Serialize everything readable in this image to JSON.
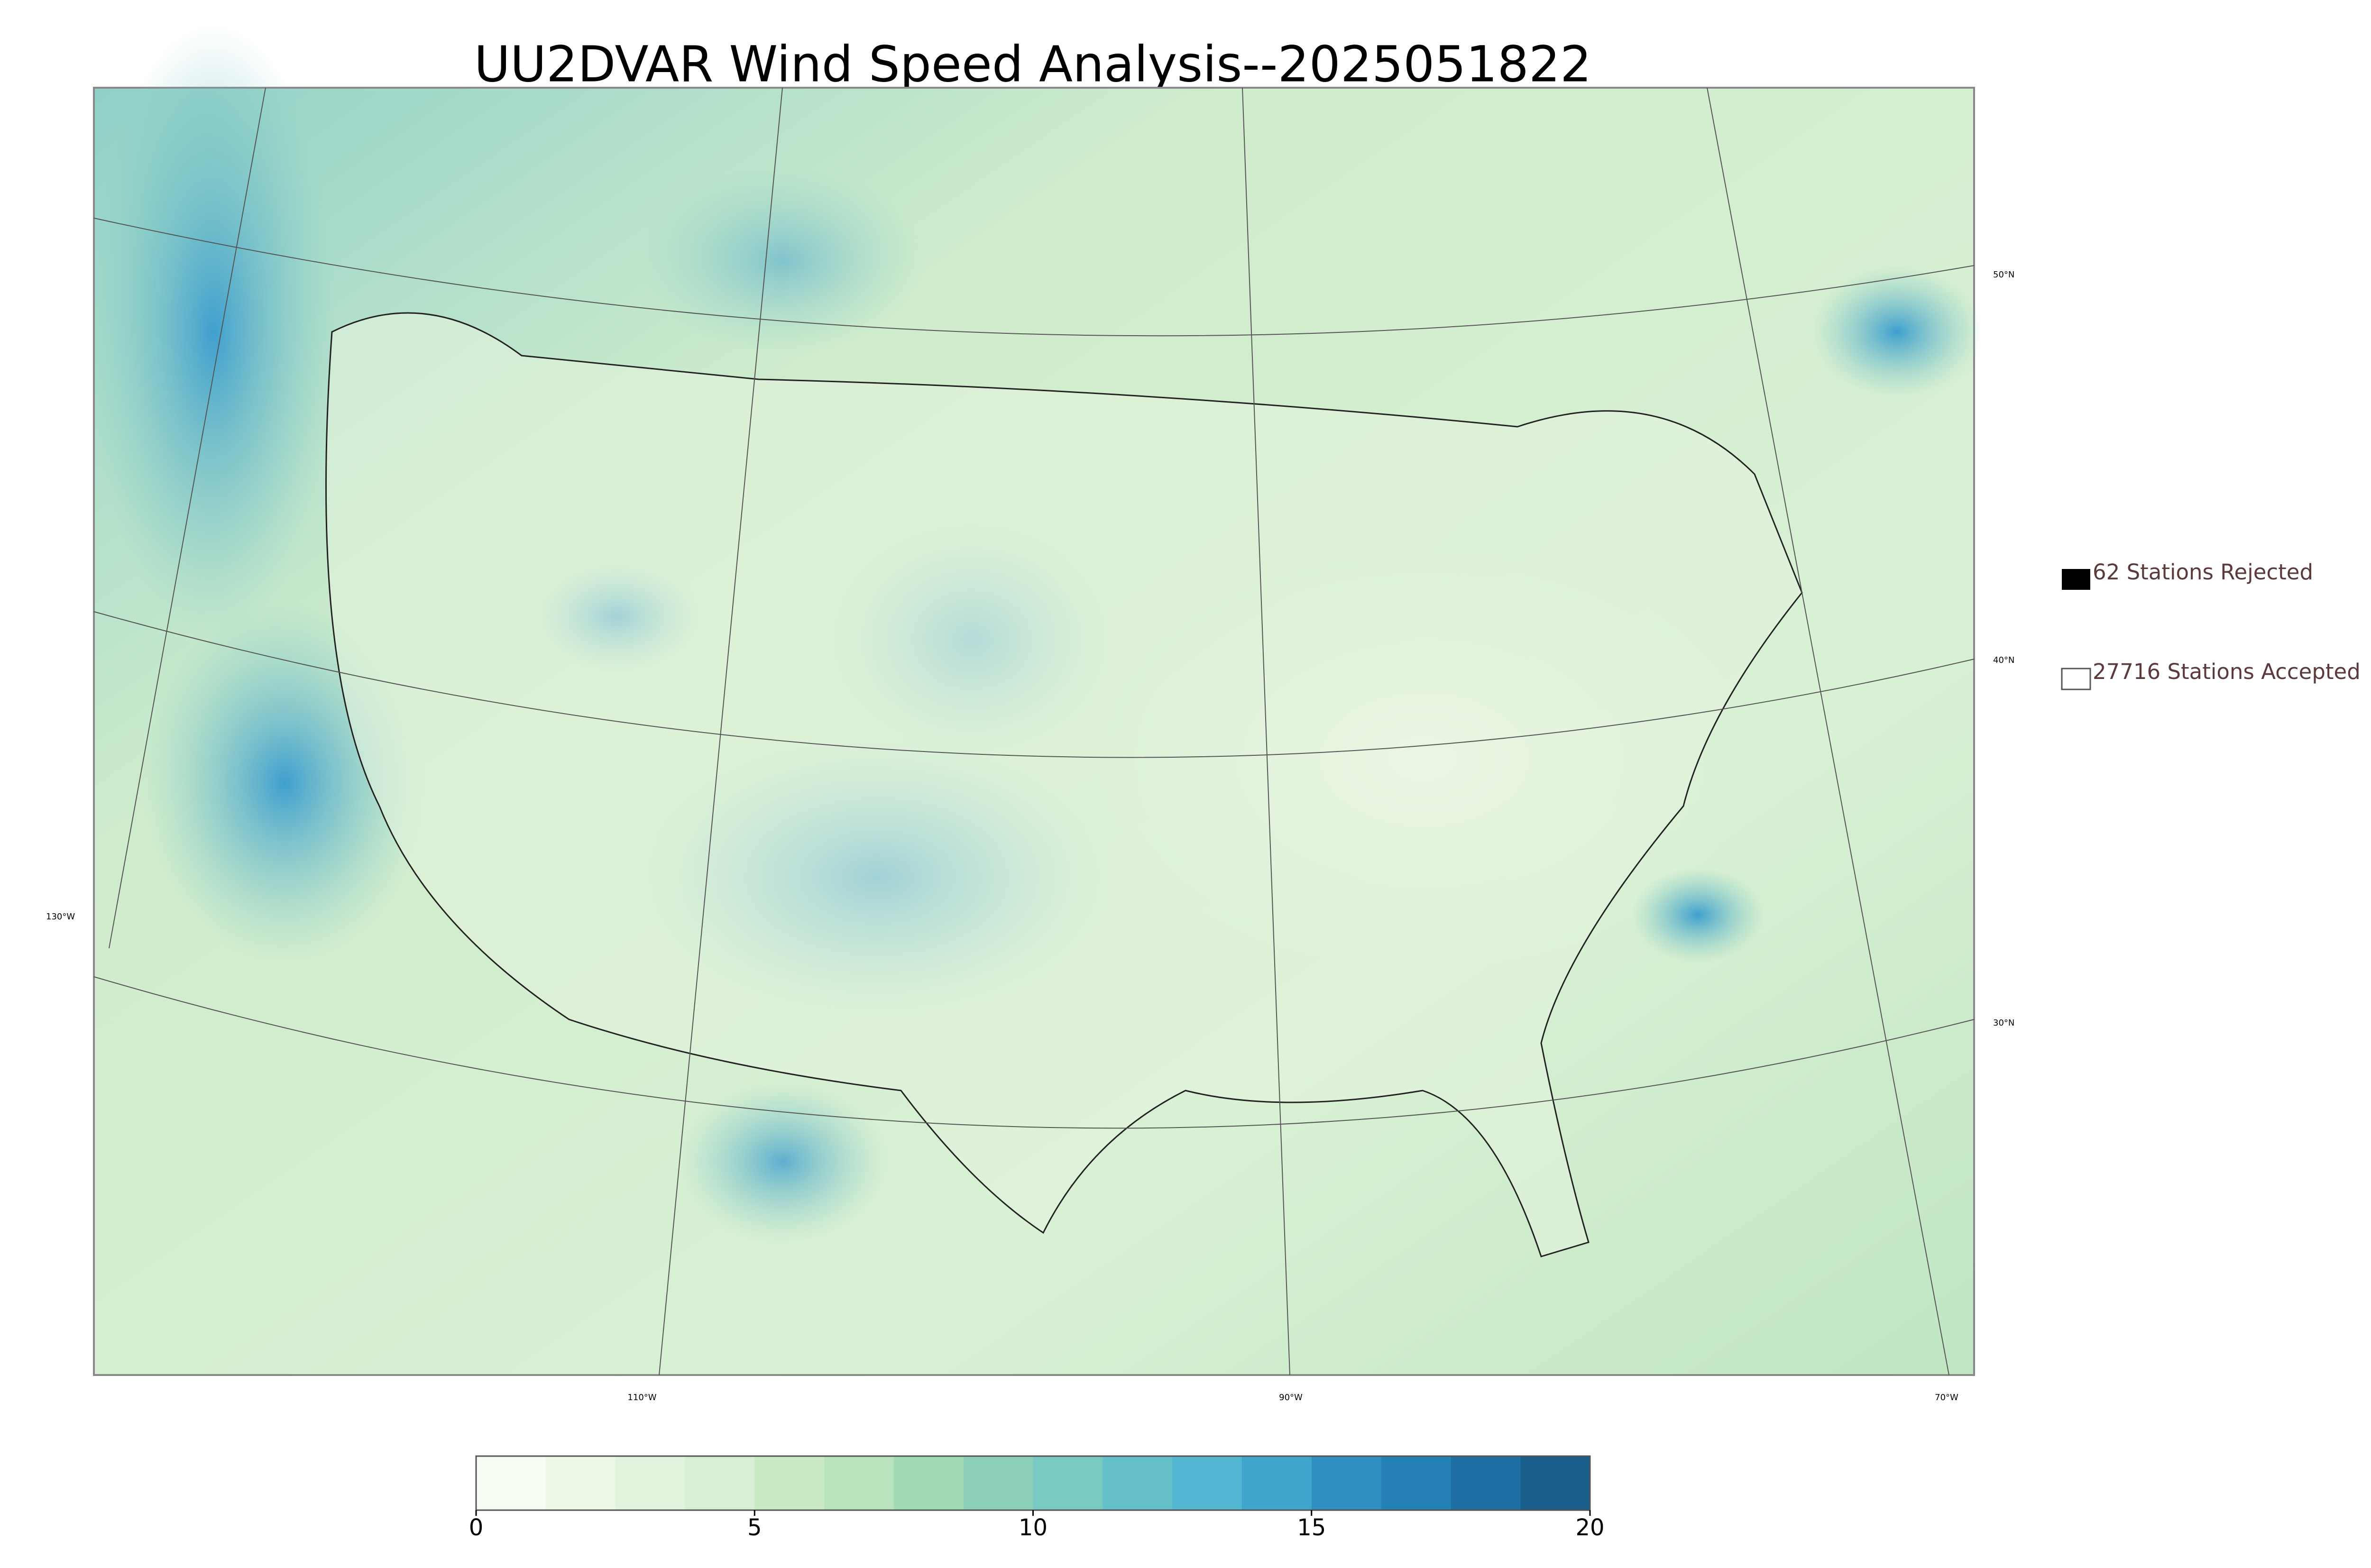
{
  "title": "UU2DVAR Wind Speed Analysis--2025051822",
  "legend": [
    "62 Stations Rejected",
    "27716 Stations Accepted"
  ],
  "graticule": {
    "lat_labels": [
      "50°N",
      "40°N",
      "30°N"
    ],
    "lon_labels": [
      "130°W",
      "110°W",
      "90°W",
      "70°W"
    ]
  },
  "colorbar": {
    "lim": [
      0,
      20
    ],
    "ticks": [
      0,
      5,
      10,
      15,
      20
    ],
    "colors": [
      "#f7fcf0",
      "#eef8e8",
      "#e3f4de",
      "#d7efd2",
      "#c9eac3",
      "#b9e3bb",
      "#a3dab6",
      "#8dd2b8",
      "#78c9c2",
      "#66c0c9",
      "#52b5d2",
      "#40a5cc",
      "#2f8fc1",
      "#2580b6",
      "#1d6fa3",
      "#1a5f8c"
    ]
  }
}
